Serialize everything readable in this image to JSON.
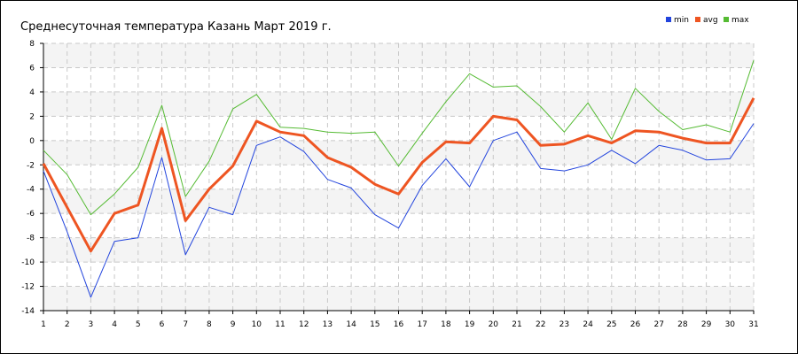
{
  "chart_data": {
    "type": "line",
    "title": "Среднесуточная температура Казань  Март 2019 г.",
    "xlabel": "",
    "ylabel": "",
    "x": [
      1,
      2,
      3,
      4,
      5,
      6,
      7,
      8,
      9,
      10,
      11,
      12,
      13,
      14,
      15,
      16,
      17,
      18,
      19,
      20,
      21,
      22,
      23,
      24,
      25,
      26,
      27,
      28,
      29,
      30,
      31
    ],
    "x_ticks": [
      "1",
      "2",
      "3",
      "4",
      "5",
      "6",
      "7",
      "8",
      "9",
      "10",
      "11",
      "12",
      "13",
      "14",
      "15",
      "16",
      "17",
      "18",
      "19",
      "20",
      "21",
      "22",
      "23",
      "24",
      "25",
      "26",
      "27",
      "28",
      "29",
      "30",
      "31"
    ],
    "ylim": [
      -14,
      8
    ],
    "y_ticks": [
      "-14",
      "-12",
      "-10",
      "-8",
      "-6",
      "-4",
      "-2",
      "0",
      "2",
      "4",
      "6",
      "8"
    ],
    "grid": true,
    "legend_position": "top-right",
    "series": [
      {
        "name": "min",
        "color": "#2244dd",
        "values": [
          -2.5,
          -7.5,
          -12.9,
          -8.3,
          -8.0,
          -1.4,
          -9.4,
          -5.5,
          -6.1,
          -0.4,
          0.3,
          -0.9,
          -3.2,
          -3.9,
          -6.1,
          -7.2,
          -3.7,
          -1.5,
          -3.8,
          0.0,
          0.7,
          -2.3,
          -2.5,
          -2.0,
          -0.8,
          -1.9,
          -0.4,
          -0.8,
          -1.6,
          -1.5,
          1.4
        ]
      },
      {
        "name": "avg",
        "color": "#ee5522",
        "values": [
          -1.9,
          -5.5,
          -9.1,
          -6.0,
          -5.3,
          1.0,
          -6.6,
          -4.0,
          -2.1,
          1.6,
          0.7,
          0.4,
          -1.4,
          -2.2,
          -3.6,
          -4.4,
          -1.8,
          -0.1,
          -0.2,
          2.0,
          1.7,
          -0.4,
          -0.3,
          0.4,
          -0.2,
          0.8,
          0.7,
          0.2,
          -0.2,
          -0.2,
          3.5
        ]
      },
      {
        "name": "max",
        "color": "#55bb33",
        "values": [
          -0.8,
          -2.8,
          -6.1,
          -4.4,
          -2.2,
          2.9,
          -4.6,
          -1.7,
          2.6,
          3.8,
          1.1,
          1.0,
          0.7,
          0.6,
          0.7,
          -2.1,
          0.6,
          3.2,
          5.5,
          4.4,
          4.5,
          2.8,
          0.7,
          3.1,
          0.1,
          4.3,
          2.4,
          0.9,
          1.3,
          0.7,
          6.6
        ]
      }
    ]
  }
}
